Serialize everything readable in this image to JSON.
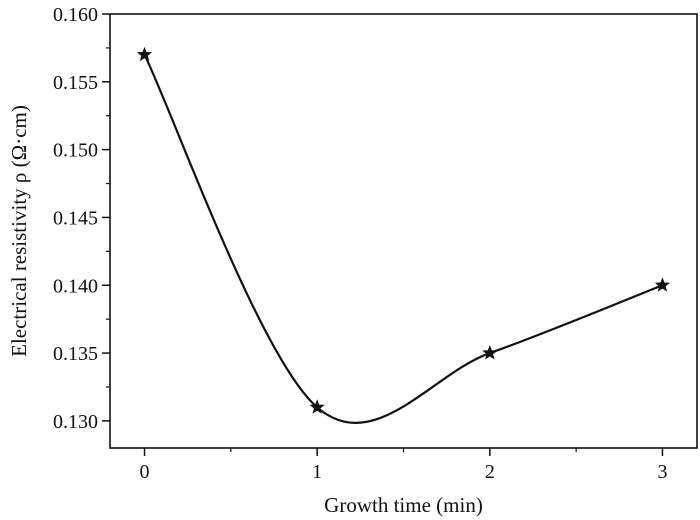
{
  "chart_data": {
    "type": "line",
    "title": "",
    "xlabel": "Growth time (min)",
    "ylabel": "Electrical resistivity ρ (Ω·cm)",
    "xlim": [
      -0.2,
      3.2
    ],
    "ylim": [
      0.128,
      0.16
    ],
    "x_ticks": [
      0,
      1,
      2,
      3
    ],
    "x_tick_labels": [
      "0",
      "1",
      "2",
      "3"
    ],
    "y_ticks": [
      0.13,
      0.135,
      0.14,
      0.145,
      0.15,
      0.155,
      0.16
    ],
    "y_tick_labels": [
      "0.130",
      "0.135",
      "0.140",
      "0.145",
      "0.150",
      "0.155",
      "0.160"
    ],
    "grid": false,
    "legend": "none",
    "marker": "star",
    "smooth": true,
    "series": [
      {
        "x": [
          0,
          1,
          2,
          3
        ],
        "values": [
          0.157,
          0.131,
          0.135,
          0.14
        ]
      }
    ],
    "colors": {
      "line": "#111111",
      "axis": "#111111"
    }
  }
}
